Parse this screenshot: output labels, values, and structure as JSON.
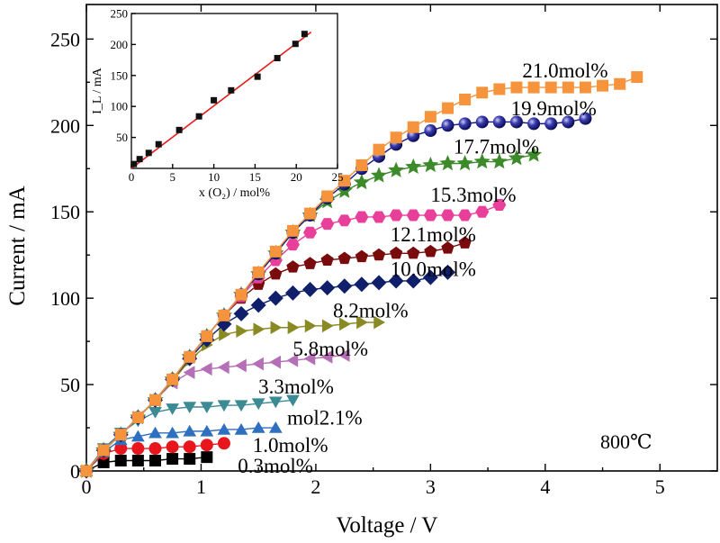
{
  "chart_data": {
    "type": "scatter",
    "xlabel": "Voltage / V",
    "ylabel": "Current / mA",
    "xlim": [
      0,
      5.5
    ],
    "ylim": [
      0,
      270
    ],
    "xticks": [
      0,
      1,
      2,
      3,
      4,
      5
    ],
    "yticks": [
      0,
      50,
      100,
      150,
      200,
      250
    ],
    "annotation": "800℃",
    "series": [
      {
        "name": "0.3mol%",
        "color": "#000000",
        "marker": "square",
        "label_x": 1.32,
        "label_y": 3,
        "points": [
          [
            0,
            0
          ],
          [
            0.15,
            5
          ],
          [
            0.3,
            6
          ],
          [
            0.45,
            6
          ],
          [
            0.6,
            6
          ],
          [
            0.75,
            7
          ],
          [
            0.9,
            7
          ],
          [
            1.05,
            8
          ]
        ]
      },
      {
        "name": "1.0mol%",
        "color": "#e8161c",
        "marker": "circle",
        "label_x": 1.45,
        "label_y": 15,
        "points": [
          [
            0,
            0
          ],
          [
            0.15,
            10
          ],
          [
            0.3,
            13
          ],
          [
            0.45,
            13
          ],
          [
            0.6,
            13
          ],
          [
            0.75,
            14
          ],
          [
            0.9,
            14
          ],
          [
            1.05,
            15
          ],
          [
            1.2,
            16
          ]
        ]
      },
      {
        "name": "mol2.1%",
        "color": "#2e6fc0",
        "marker": "triangle-up",
        "label_x": 1.75,
        "label_y": 31,
        "points": [
          [
            0,
            0
          ],
          [
            0.15,
            11
          ],
          [
            0.3,
            18
          ],
          [
            0.45,
            20
          ],
          [
            0.6,
            22
          ],
          [
            0.75,
            22
          ],
          [
            0.9,
            23
          ],
          [
            1.05,
            23
          ],
          [
            1.2,
            24
          ],
          [
            1.35,
            24
          ],
          [
            1.5,
            25
          ],
          [
            1.65,
            25
          ]
        ]
      },
      {
        "name": "3.3mol%",
        "color": "#3b8a94",
        "marker": "triangle-down",
        "label_x": 1.5,
        "label_y": 49,
        "points": [
          [
            0,
            0
          ],
          [
            0.15,
            13
          ],
          [
            0.3,
            22
          ],
          [
            0.45,
            29
          ],
          [
            0.6,
            34
          ],
          [
            0.75,
            36
          ],
          [
            0.9,
            37
          ],
          [
            1.05,
            37
          ],
          [
            1.2,
            38
          ],
          [
            1.35,
            38
          ],
          [
            1.5,
            39
          ],
          [
            1.65,
            40
          ],
          [
            1.8,
            41
          ]
        ]
      },
      {
        "name": "5.8mol%",
        "color": "#b56fb6",
        "marker": "triangle-left",
        "label_x": 1.8,
        "label_y": 71,
        "points": [
          [
            0,
            0
          ],
          [
            0.15,
            12
          ],
          [
            0.3,
            21
          ],
          [
            0.45,
            31
          ],
          [
            0.6,
            41
          ],
          [
            0.75,
            51
          ],
          [
            0.9,
            57
          ],
          [
            1.05,
            59
          ],
          [
            1.2,
            60
          ],
          [
            1.35,
            61
          ],
          [
            1.5,
            62
          ],
          [
            1.65,
            63
          ],
          [
            1.8,
            64
          ],
          [
            1.95,
            65
          ],
          [
            2.1,
            66
          ],
          [
            2.25,
            67
          ]
        ]
      },
      {
        "name": "8.2mol%",
        "color": "#8a8a25",
        "marker": "triangle-right",
        "label_x": 2.15,
        "label_y": 93,
        "points": [
          [
            0,
            0
          ],
          [
            0.15,
            12
          ],
          [
            0.3,
            21
          ],
          [
            0.45,
            31
          ],
          [
            0.6,
            41
          ],
          [
            0.75,
            52
          ],
          [
            0.9,
            64
          ],
          [
            1.05,
            73
          ],
          [
            1.2,
            79
          ],
          [
            1.35,
            81
          ],
          [
            1.5,
            82
          ],
          [
            1.65,
            83
          ],
          [
            1.8,
            83
          ],
          [
            1.95,
            84
          ],
          [
            2.1,
            84
          ],
          [
            2.25,
            85
          ],
          [
            2.4,
            86
          ],
          [
            2.55,
            86
          ]
        ]
      },
      {
        "name": "10.0mol%",
        "color": "#0f1f6a",
        "marker": "diamond",
        "label_x": 2.65,
        "label_y": 117,
        "points": [
          [
            0,
            0
          ],
          [
            0.15,
            12
          ],
          [
            0.3,
            21
          ],
          [
            0.45,
            31
          ],
          [
            0.6,
            41
          ],
          [
            0.75,
            53
          ],
          [
            0.9,
            65
          ],
          [
            1.05,
            76
          ],
          [
            1.2,
            85
          ],
          [
            1.35,
            91
          ],
          [
            1.5,
            96
          ],
          [
            1.65,
            100
          ],
          [
            1.8,
            103
          ],
          [
            1.95,
            105
          ],
          [
            2.1,
            106
          ],
          [
            2.25,
            107
          ],
          [
            2.4,
            108
          ],
          [
            2.55,
            109
          ],
          [
            2.7,
            110
          ],
          [
            2.85,
            110
          ],
          [
            3.0,
            112
          ],
          [
            3.15,
            115
          ]
        ]
      },
      {
        "name": "12.1mol%",
        "color": "#7a0b0d",
        "marker": "pentagon",
        "label_x": 2.65,
        "label_y": 137,
        "points": [
          [
            0,
            0
          ],
          [
            0.15,
            12
          ],
          [
            0.3,
            21
          ],
          [
            0.45,
            31
          ],
          [
            0.6,
            41
          ],
          [
            0.75,
            53
          ],
          [
            0.9,
            66
          ],
          [
            1.05,
            78
          ],
          [
            1.2,
            90
          ],
          [
            1.35,
            100
          ],
          [
            1.5,
            108
          ],
          [
            1.65,
            114
          ],
          [
            1.8,
            118
          ],
          [
            1.95,
            120
          ],
          [
            2.1,
            122
          ],
          [
            2.25,
            123
          ],
          [
            2.4,
            124
          ],
          [
            2.55,
            125
          ],
          [
            2.7,
            126
          ],
          [
            2.85,
            126
          ],
          [
            3.0,
            127
          ],
          [
            3.15,
            129
          ],
          [
            3.3,
            132
          ]
        ]
      },
      {
        "name": "15.3mol%",
        "color": "#e8409a",
        "marker": "hexagon",
        "label_x": 3.0,
        "label_y": 160,
        "points": [
          [
            0,
            0
          ],
          [
            0.15,
            12
          ],
          [
            0.3,
            21
          ],
          [
            0.45,
            31
          ],
          [
            0.6,
            41
          ],
          [
            0.75,
            53
          ],
          [
            0.9,
            66
          ],
          [
            1.05,
            78
          ],
          [
            1.2,
            90
          ],
          [
            1.35,
            101
          ],
          [
            1.5,
            112
          ],
          [
            1.65,
            122
          ],
          [
            1.8,
            131
          ],
          [
            1.95,
            138
          ],
          [
            2.1,
            143
          ],
          [
            2.25,
            145
          ],
          [
            2.4,
            147
          ],
          [
            2.55,
            147
          ],
          [
            2.7,
            148
          ],
          [
            2.85,
            148
          ],
          [
            3.0,
            148
          ],
          [
            3.15,
            148
          ],
          [
            3.3,
            148
          ],
          [
            3.45,
            150
          ],
          [
            3.6,
            154
          ]
        ]
      },
      {
        "name": "17.7mol%",
        "color": "#3d8a2a",
        "marker": "star",
        "label_x": 3.2,
        "label_y": 188,
        "points": [
          [
            0,
            0
          ],
          [
            0.15,
            12
          ],
          [
            0.3,
            21
          ],
          [
            0.45,
            31
          ],
          [
            0.6,
            41
          ],
          [
            0.75,
            53
          ],
          [
            0.9,
            66
          ],
          [
            1.05,
            78
          ],
          [
            1.2,
            90
          ],
          [
            1.35,
            102
          ],
          [
            1.5,
            114
          ],
          [
            1.65,
            126
          ],
          [
            1.8,
            138
          ],
          [
            1.95,
            148
          ],
          [
            2.1,
            156
          ],
          [
            2.25,
            162
          ],
          [
            2.4,
            167
          ],
          [
            2.55,
            171
          ],
          [
            2.7,
            174
          ],
          [
            2.85,
            176
          ],
          [
            3.0,
            177
          ],
          [
            3.15,
            178
          ],
          [
            3.3,
            178
          ],
          [
            3.45,
            179
          ],
          [
            3.6,
            179
          ],
          [
            3.75,
            181
          ],
          [
            3.9,
            183
          ]
        ]
      },
      {
        "name": "19.9mol%",
        "color": "#15168a",
        "marker": "sphere",
        "label_x": 3.7,
        "label_y": 210,
        "points": [
          [
            0,
            0
          ],
          [
            0.15,
            12
          ],
          [
            0.3,
            21
          ],
          [
            0.45,
            31
          ],
          [
            0.6,
            41
          ],
          [
            0.75,
            53
          ],
          [
            0.9,
            66
          ],
          [
            1.05,
            78
          ],
          [
            1.2,
            90
          ],
          [
            1.35,
            102
          ],
          [
            1.5,
            114
          ],
          [
            1.65,
            126
          ],
          [
            1.8,
            138
          ],
          [
            1.95,
            148
          ],
          [
            2.1,
            158
          ],
          [
            2.25,
            166
          ],
          [
            2.4,
            175
          ],
          [
            2.55,
            182
          ],
          [
            2.7,
            189
          ],
          [
            2.85,
            194
          ],
          [
            3.0,
            197
          ],
          [
            3.15,
            200
          ],
          [
            3.3,
            201
          ],
          [
            3.45,
            202
          ],
          [
            3.6,
            202
          ],
          [
            3.75,
            202
          ],
          [
            3.9,
            201
          ],
          [
            4.05,
            201
          ],
          [
            4.2,
            202
          ],
          [
            4.35,
            204
          ]
        ]
      },
      {
        "name": "21.0mol%",
        "color": "#f5943c",
        "marker": "square",
        "label_x": 3.8,
        "label_y": 232,
        "points": [
          [
            0,
            0
          ],
          [
            0.15,
            12
          ],
          [
            0.3,
            21
          ],
          [
            0.45,
            31
          ],
          [
            0.6,
            41
          ],
          [
            0.75,
            53
          ],
          [
            0.9,
            66
          ],
          [
            1.05,
            78
          ],
          [
            1.2,
            90
          ],
          [
            1.35,
            102
          ],
          [
            1.5,
            115
          ],
          [
            1.65,
            127
          ],
          [
            1.8,
            139
          ],
          [
            1.95,
            149
          ],
          [
            2.1,
            159
          ],
          [
            2.25,
            168
          ],
          [
            2.4,
            177
          ],
          [
            2.55,
            186
          ],
          [
            2.7,
            193
          ],
          [
            2.85,
            199
          ],
          [
            3.0,
            205
          ],
          [
            3.15,
            210
          ],
          [
            3.3,
            215
          ],
          [
            3.45,
            219
          ],
          [
            3.6,
            221
          ],
          [
            3.75,
            222
          ],
          [
            3.9,
            222
          ],
          [
            4.05,
            222
          ],
          [
            4.2,
            222
          ],
          [
            4.35,
            222
          ],
          [
            4.5,
            223
          ],
          [
            4.65,
            224
          ],
          [
            4.8,
            228
          ]
        ]
      }
    ],
    "inset": {
      "type": "scatter",
      "xlabel": "x (O₂) / mol%",
      "ylabel": "I_L / mA",
      "xlim": [
        0,
        25
      ],
      "ylim": [
        0,
        250
      ],
      "xticks": [
        0,
        5,
        10,
        15,
        20,
        25
      ],
      "yticks": [
        50,
        100,
        150,
        200,
        250
      ],
      "points": [
        [
          0.3,
          7
        ],
        [
          1.0,
          15
        ],
        [
          2.1,
          25
        ],
        [
          3.3,
          39
        ],
        [
          5.8,
          62
        ],
        [
          8.2,
          84
        ],
        [
          10.0,
          110
        ],
        [
          12.1,
          126
        ],
        [
          15.3,
          148
        ],
        [
          17.7,
          178
        ],
        [
          19.9,
          201
        ],
        [
          21.0,
          217
        ]
      ],
      "fit_line": [
        [
          0,
          0
        ],
        [
          21.8,
          220
        ]
      ]
    }
  }
}
